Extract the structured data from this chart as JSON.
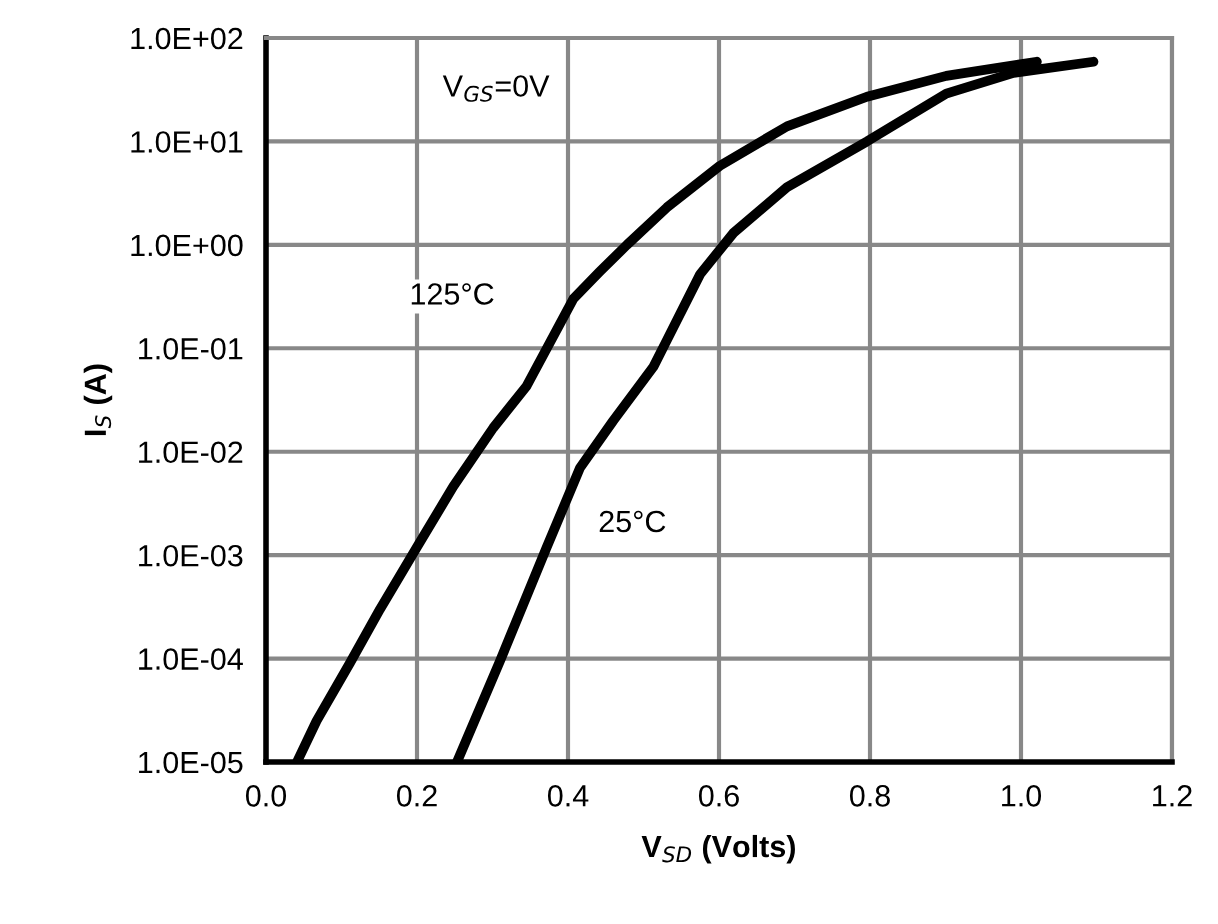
{
  "chart_data": {
    "type": "line",
    "log": "y",
    "grid": true,
    "xlabel": "V$_{SD}$ (Volts)",
    "ylabel": "I$_{S}$ (A)",
    "annotations": [
      "V$_{GS}$=0V"
    ],
    "xlim": [
      0,
      1.2
    ],
    "ylim": [
      1e-05,
      100
    ],
    "xticks": [
      {
        "value": 0,
        "label": "0.0"
      },
      {
        "value": 0.2,
        "label": "0.2"
      },
      {
        "value": 0.4,
        "label": "0.4"
      },
      {
        "value": 0.6,
        "label": "0.6"
      },
      {
        "value": 0.8,
        "label": "0.8"
      },
      {
        "value": 1.0,
        "label": "1.0"
      },
      {
        "value": 1.2,
        "label": "1.2"
      }
    ],
    "yticks": [
      {
        "value": 1e-05,
        "label": "1.0E-05"
      },
      {
        "value": 0.0001,
        "label": "1.0E-04"
      },
      {
        "value": 0.001,
        "label": "1.0E-03"
      },
      {
        "value": 0.01,
        "label": "1.0E-02"
      },
      {
        "value": 0.1,
        "label": "1.0E-01"
      },
      {
        "value": 1,
        "label": "1.0E+00"
      },
      {
        "value": 10,
        "label": "1.0E+01"
      },
      {
        "value": 100,
        "label": "1.0E+02"
      }
    ],
    "series": [
      {
        "name": "125°C",
        "color": "#000000",
        "x": [
          0.041,
          0.067,
          0.111,
          0.151,
          0.2,
          0.248,
          0.301,
          0.345,
          0.372,
          0.407,
          0.442,
          0.478,
          0.531,
          0.601,
          0.69,
          0.796,
          0.901,
          1.021
        ],
        "values": [
          1e-05,
          2.5e-05,
          9e-05,
          0.0003,
          0.0012,
          0.0046,
          0.017,
          0.043,
          0.1,
          0.3,
          0.55,
          1.0,
          2.3,
          5.8,
          14,
          27,
          43,
          59
        ]
      },
      {
        "name": "25°C",
        "color": "#000000",
        "x": [
          0.253,
          0.31,
          0.372,
          0.416,
          0.46,
          0.513,
          0.531,
          0.575,
          0.619,
          0.69,
          0.796,
          0.901,
          0.99,
          1.096
        ],
        "values": [
          1e-05,
          9.5e-05,
          0.0012,
          0.007,
          0.02,
          0.066,
          0.12,
          0.52,
          1.3,
          3.6,
          10,
          29,
          46,
          59
        ]
      }
    ]
  }
}
